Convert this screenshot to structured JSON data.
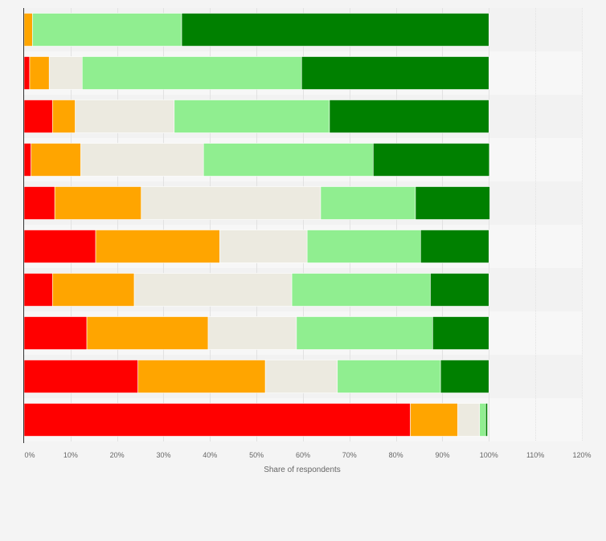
{
  "chart_data": {
    "type": "bar",
    "orientation": "horizontal",
    "stacked": true,
    "title": "",
    "xlabel": "Share of respondents",
    "ylabel": "",
    "xlim": [
      0,
      120
    ],
    "x_ticks": [
      0,
      10,
      20,
      30,
      40,
      50,
      60,
      70,
      80,
      90,
      100,
      110,
      120
    ],
    "x_tick_labels": [
      "0%",
      "10%",
      "20%",
      "30%",
      "40%",
      "50%",
      "60%",
      "70%",
      "80%",
      "90%",
      "100%",
      "110%",
      "120%"
    ],
    "grid": true,
    "legend": "none",
    "categories": [
      "",
      "",
      "",
      "",
      "",
      "",
      "",
      "",
      "",
      ""
    ],
    "series": [
      {
        "color": "#ff0000",
        "values": [
          0,
          1.2,
          6.1,
          1.5,
          6.6,
          15.4,
          6.1,
          13.5,
          24.5,
          83.1
        ]
      },
      {
        "color": "#ffa500",
        "values": [
          1.8,
          4.2,
          4.9,
          10.7,
          18.6,
          26.7,
          17.6,
          26.1,
          27.4,
          10.2
        ]
      },
      {
        "color": "#eceae0",
        "values": [
          0,
          7.1,
          21.3,
          26.4,
          38.6,
          18.8,
          33.9,
          19.0,
          15.5,
          4.7
        ]
      },
      {
        "color": "#90ee90",
        "values": [
          32.1,
          47.2,
          33.4,
          36.5,
          20.4,
          24.4,
          29.8,
          29.3,
          22.2,
          1.3
        ]
      },
      {
        "color": "#008000",
        "values": [
          66.1,
          40.3,
          34.3,
          25.0,
          16.0,
          14.7,
          12.6,
          12.1,
          10.4,
          0.4
        ]
      }
    ]
  }
}
